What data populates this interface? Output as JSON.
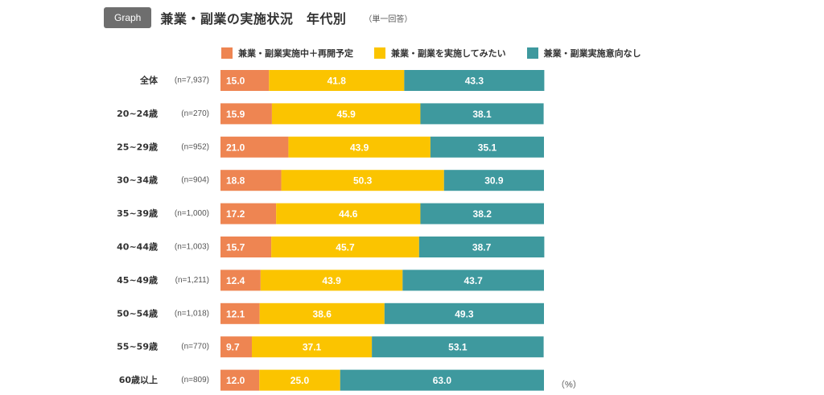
{
  "header": {
    "badge": "Graph",
    "title": "兼業・副業の実施状況　年代別",
    "subtitle": "（単一回答）"
  },
  "chart_data": {
    "type": "bar",
    "orientation": "horizontal",
    "stacked": true,
    "unit": "（%）",
    "legend_position": "top",
    "xlim": [
      0,
      100
    ],
    "categories": [
      "全体",
      "20~24歳",
      "25~29歳",
      "30~34歳",
      "35~39歳",
      "40~44歳",
      "45~49歳",
      "50~54歳",
      "55~59歳",
      "60歳以上"
    ],
    "sample_sizes": [
      "(n=7,937)",
      "(n=270)",
      "(n=952)",
      "(n=904)",
      "(n=1,000)",
      "(n=1,003)",
      "(n=1,211)",
      "(n=1,018)",
      "(n=770)",
      "(n=809)"
    ],
    "series": [
      {
        "name": "兼業・副業実施中＋再開予定",
        "color": "#ee8552",
        "values": [
          15.0,
          15.9,
          21.0,
          18.8,
          17.2,
          15.7,
          12.4,
          12.1,
          9.7,
          12.0
        ],
        "labels": [
          "15.0",
          "15.9",
          "21.0",
          "18.8",
          "17.2",
          "15.7",
          "12.4",
          "12.1",
          "9.7",
          "12.0"
        ]
      },
      {
        "name": "兼業・副業を実施してみたい",
        "color": "#fbc400",
        "values": [
          41.8,
          45.9,
          43.9,
          50.3,
          44.6,
          45.7,
          43.9,
          38.6,
          37.1,
          25.0
        ],
        "labels": [
          "41.8",
          "45.9",
          "43.9",
          "50.3",
          "44.6",
          "45.7",
          "43.9",
          "38.6",
          "37.1",
          "25.0"
        ]
      },
      {
        "name": "兼業・副業実施意向なし",
        "color": "#3e999e",
        "values": [
          43.3,
          38.1,
          35.1,
          30.9,
          38.2,
          38.7,
          43.7,
          49.3,
          53.1,
          63.0
        ],
        "labels": [
          "43.3",
          "38.1",
          "35.1",
          "30.9",
          "38.2",
          "38.7",
          "43.7",
          "49.3",
          "53.1",
          "63.0"
        ]
      }
    ]
  }
}
